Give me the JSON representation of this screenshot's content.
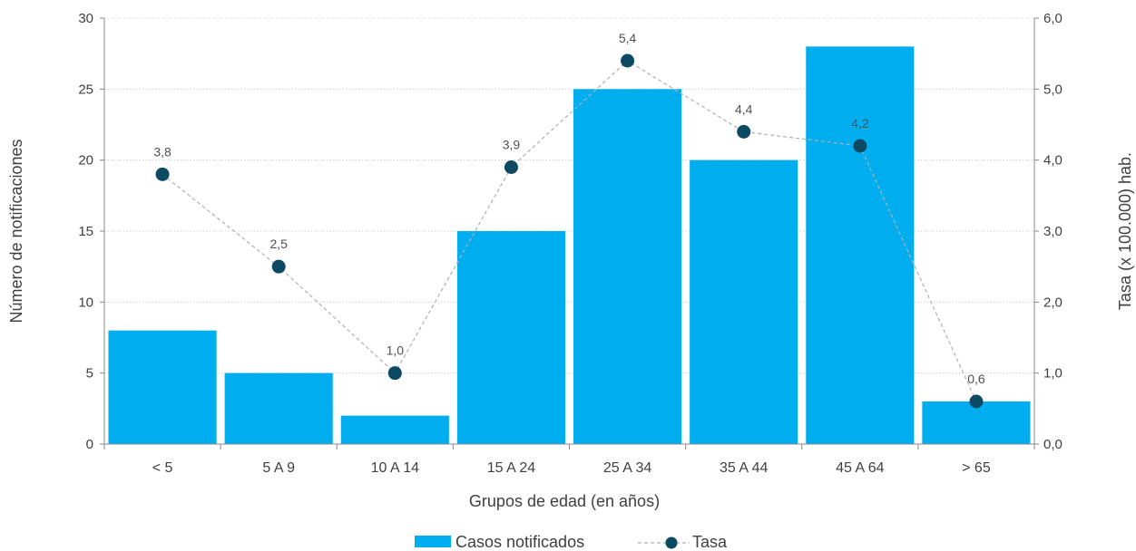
{
  "chart_data": {
    "type": "bar",
    "categories": [
      "<  5",
      "5 A 9",
      "10 A 14",
      "15 A 24",
      "25 A 34",
      "35 A 44",
      "45 A 64",
      "> 65"
    ],
    "series": [
      {
        "name": "Casos notificados",
        "type": "bar",
        "axis": "left",
        "color": "#00AEEF",
        "values": [
          8,
          5,
          2,
          15,
          25,
          20,
          28,
          3
        ]
      },
      {
        "name": "Tasa",
        "type": "line",
        "axis": "right",
        "color": "#0B4A62",
        "values": [
          3.8,
          2.5,
          1.0,
          3.9,
          5.4,
          4.4,
          4.2,
          0.6
        ],
        "data_labels": [
          "3,8",
          "2,5",
          "1,0",
          "3,9",
          "5,4",
          "4,4",
          "4,2",
          "0,6"
        ]
      }
    ],
    "title": "",
    "xlabel": "Grupos de edad (en años)",
    "ylabel": "Número de notificaciones",
    "y2label": "Tasa (x 100.000) hab.",
    "ylim": [
      0,
      30
    ],
    "y2lim": [
      0,
      6
    ],
    "y_ticks": [
      "0",
      "5",
      "10",
      "15",
      "20",
      "25",
      "30"
    ],
    "y2_ticks": [
      "0,0",
      "1,0",
      "2,0",
      "3,0",
      "4,0",
      "5,0",
      "6,0"
    ],
    "grid": true,
    "legend_position": "bottom"
  }
}
